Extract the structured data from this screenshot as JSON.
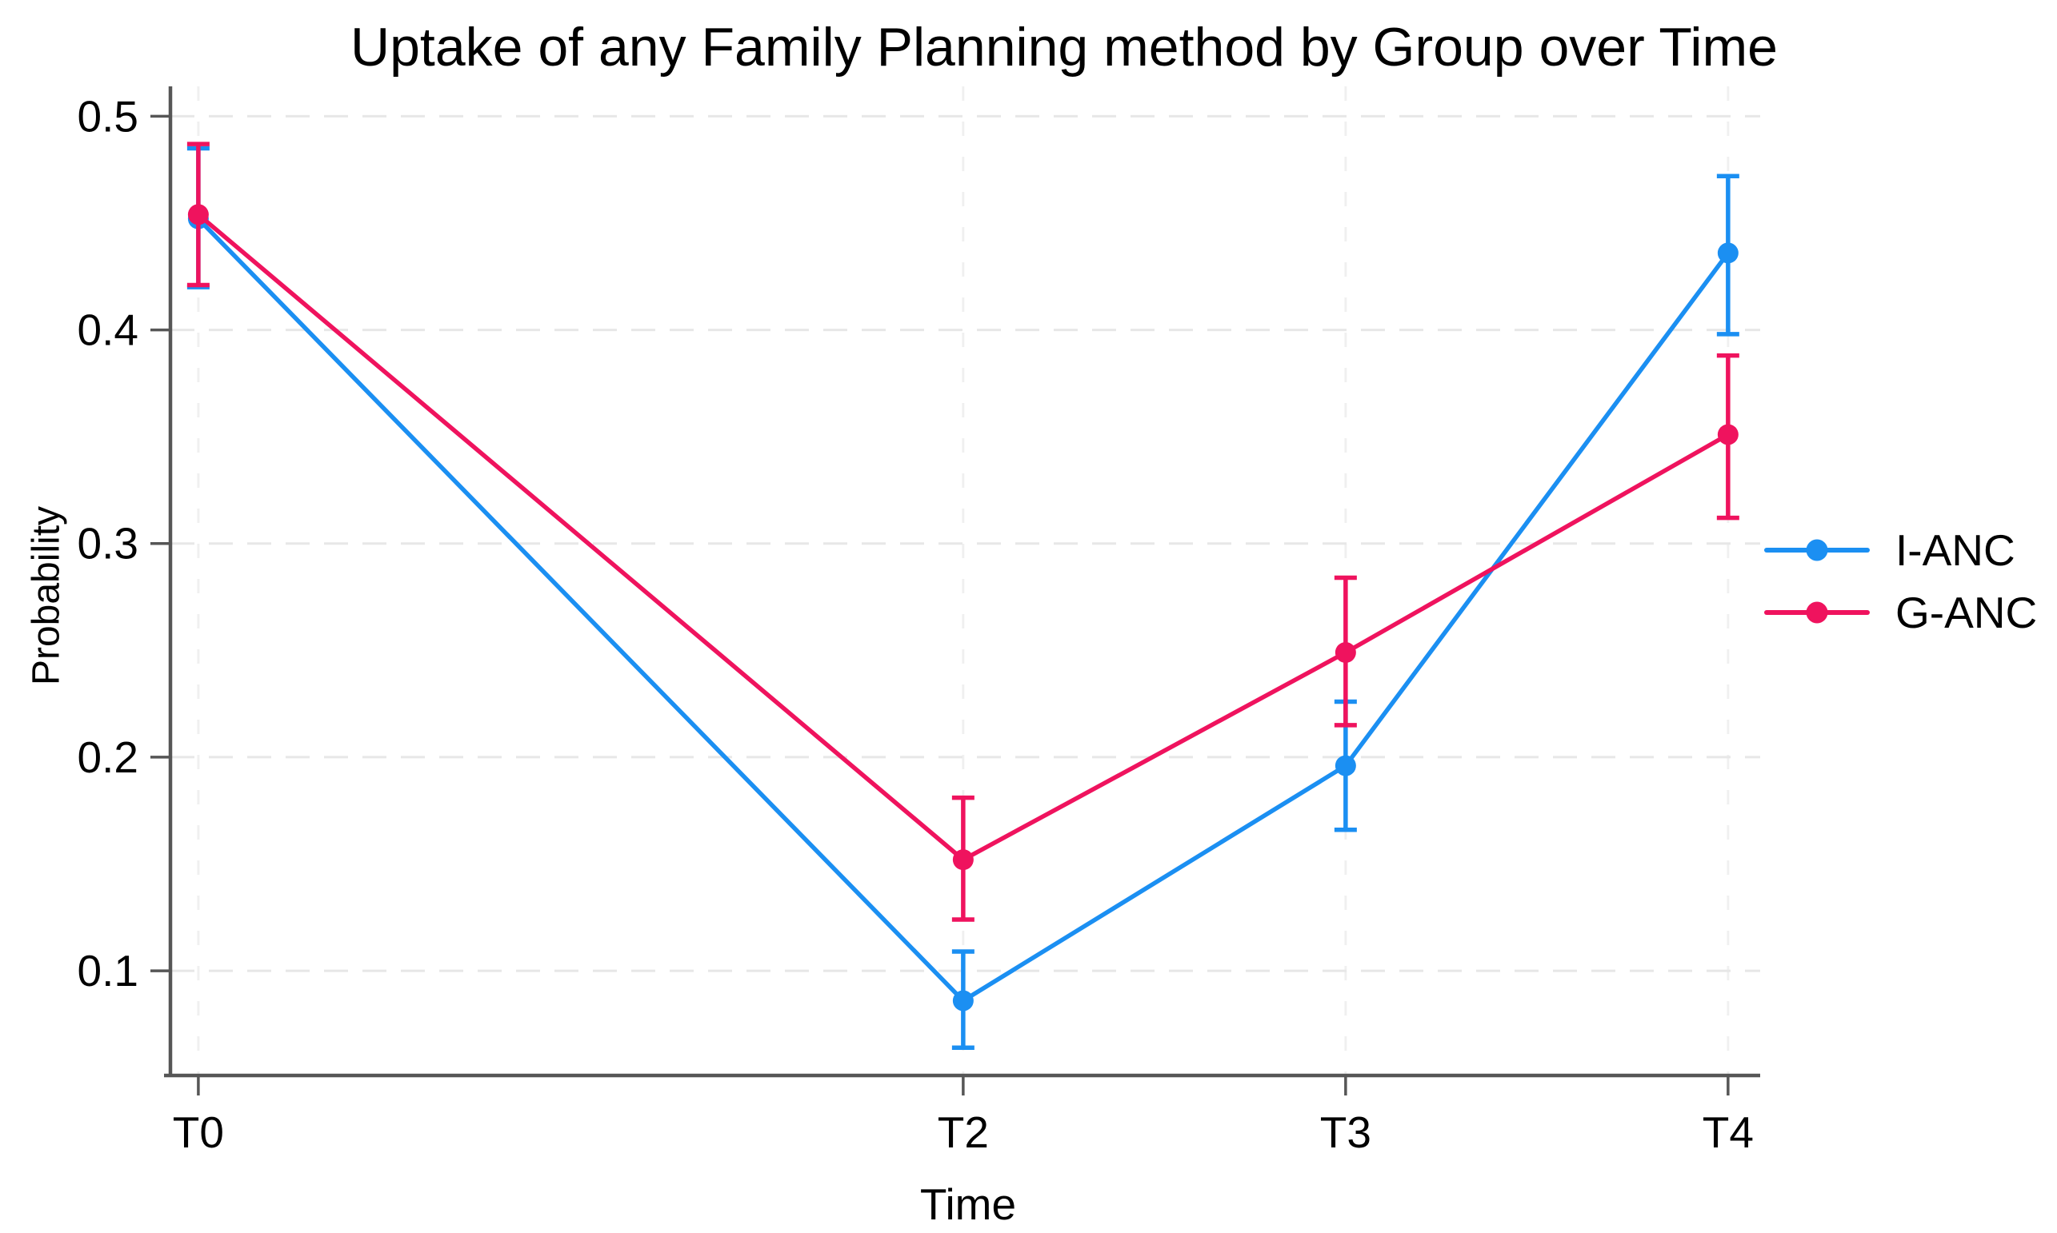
{
  "chart_data": {
    "type": "line",
    "title": "Uptake of any Family Planning method by Group over Time",
    "xlabel": "Time",
    "ylabel": "Probability",
    "x_tick_labels": [
      "T0",
      "T2",
      "T3",
      "T4"
    ],
    "x_tick_values": [
      0,
      2,
      3,
      4
    ],
    "y_ticks": [
      0.5,
      0.4,
      0.3,
      0.2,
      0.1
    ],
    "y_tick_labels": [
      "0.5",
      "0.4",
      "0.3",
      "0.2",
      "0.1"
    ],
    "xlim": [
      -0.073,
      4.084
    ],
    "ylim": [
      0.051,
      0.514
    ],
    "grid": "light dashed gridlines at every x and y tick",
    "legend_position": "right outside plot, no frame",
    "marker": "filled circle with vertical error bars and caps",
    "axis_color": "#565656",
    "h_grid_color": "#e7e7e7",
    "v_grid_color": "#f0f0f0",
    "series": [
      {
        "name": "I-ANC",
        "color": "#1b8ff2",
        "x": [
          0,
          2,
          3,
          4
        ],
        "y": [
          0.452,
          0.086,
          0.196,
          0.436
        ],
        "ci_low": [
          0.42,
          0.064,
          0.166,
          0.398
        ],
        "ci_high": [
          0.485,
          0.109,
          0.226,
          0.472
        ]
      },
      {
        "name": "G-ANC",
        "color": "#ef135e",
        "x": [
          0,
          2,
          3,
          4
        ],
        "y": [
          0.454,
          0.152,
          0.249,
          0.351
        ],
        "ci_low": [
          0.421,
          0.124,
          0.215,
          0.312
        ],
        "ci_high": [
          0.487,
          0.181,
          0.284,
          0.388
        ]
      }
    ]
  }
}
